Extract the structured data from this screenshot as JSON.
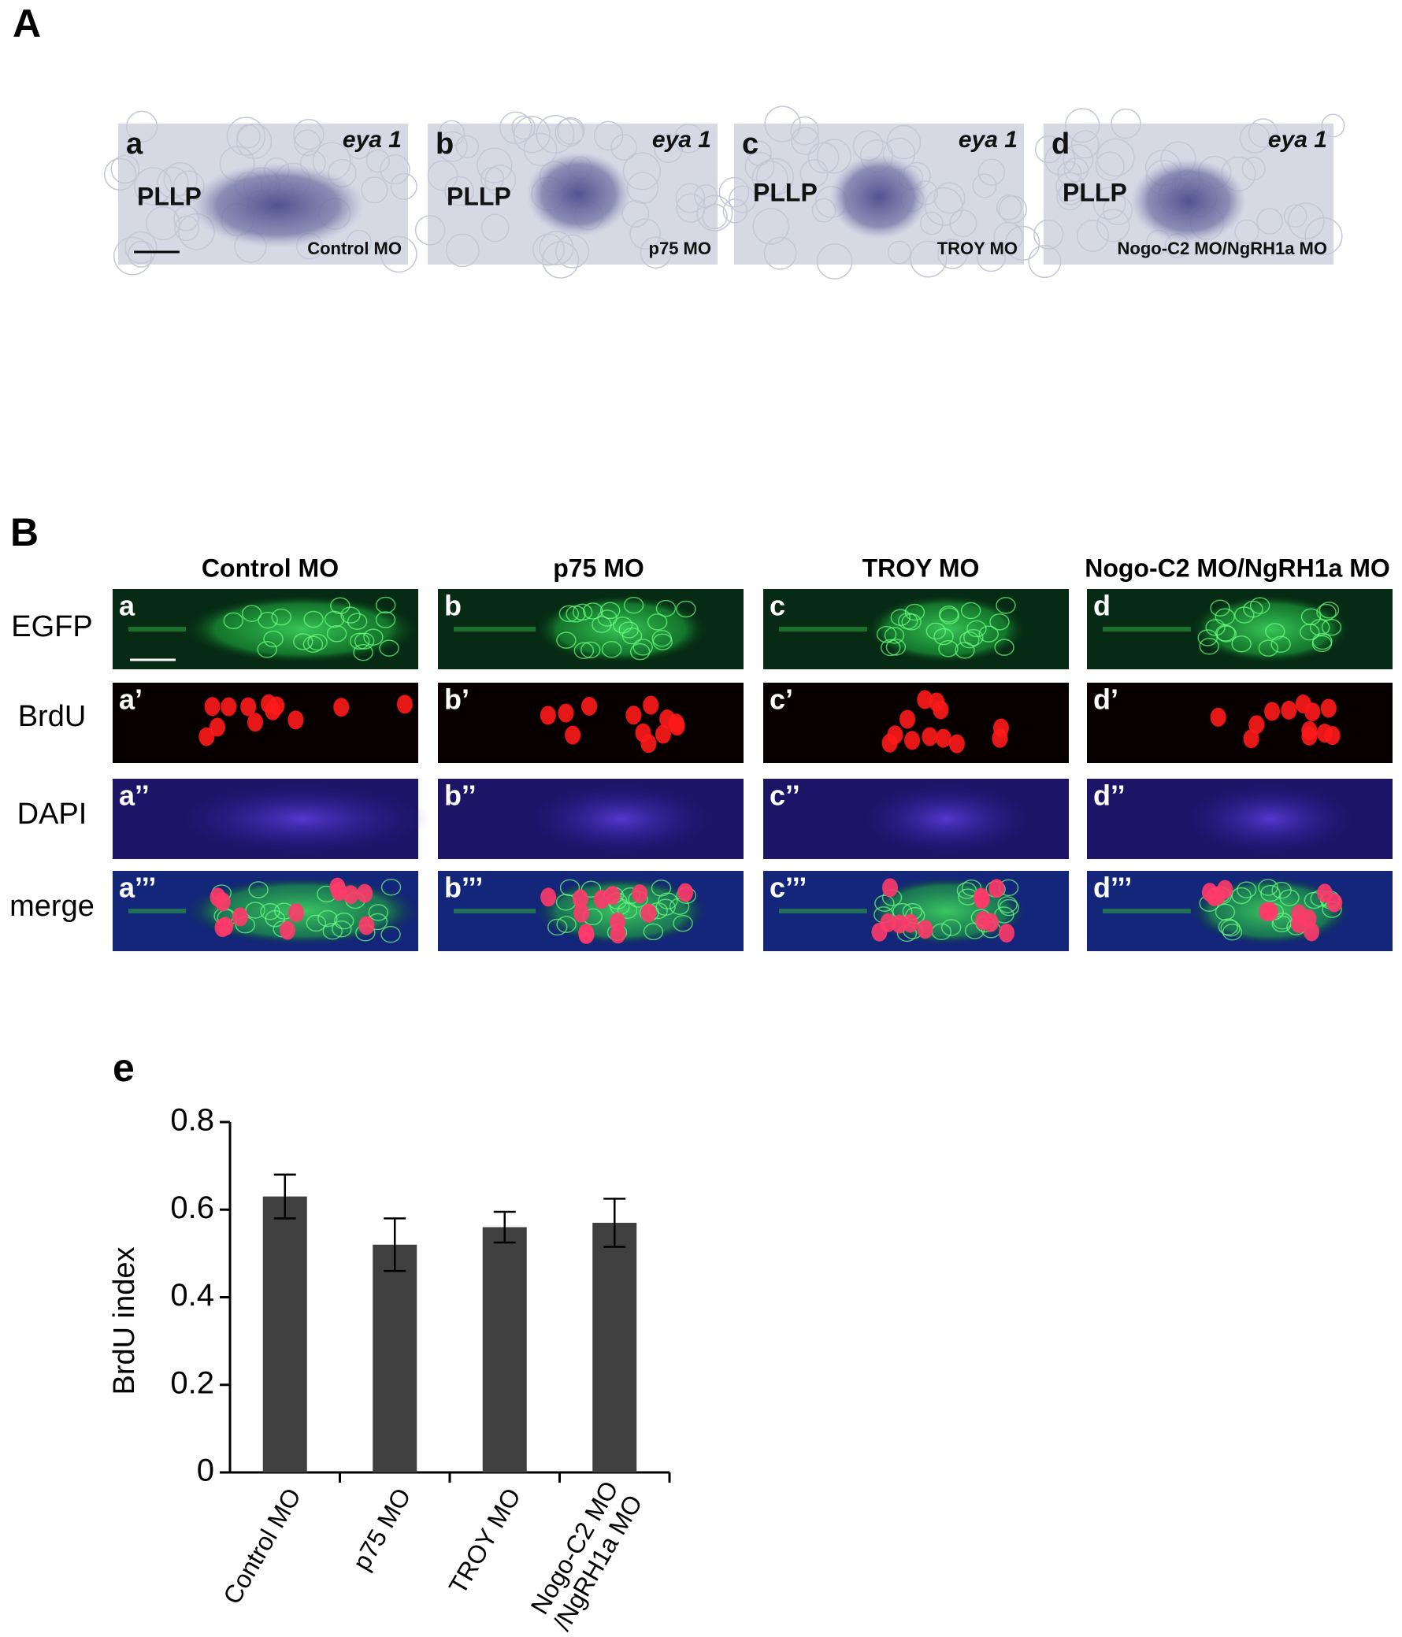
{
  "panel_A": {
    "label": "A",
    "panels": [
      {
        "letter": "a",
        "gene": "eya 1",
        "structure": "PLLP",
        "condition": "Control MO"
      },
      {
        "letter": "b",
        "gene": "eya 1",
        "structure": "PLLP",
        "condition": "p75 MO"
      },
      {
        "letter": "c",
        "gene": "eya 1",
        "structure": "PLLP",
        "condition": "TROY MO"
      },
      {
        "letter": "d",
        "gene": "eya 1",
        "structure": "PLLP",
        "condition": "Nogo-C2 MO/NgRH1a MO"
      }
    ]
  },
  "panel_B": {
    "label": "B",
    "columns": [
      "Control MO",
      "p75 MO",
      "TROY MO",
      "Nogo-C2 MO/NgRH1a MO"
    ],
    "rows": [
      "EGFP",
      "BrdU",
      "DAPI",
      "merge"
    ],
    "panel_letters": [
      [
        "a",
        "a’",
        "a’’",
        "a’’’"
      ],
      [
        "b",
        "b’",
        "b’’",
        "b’’’"
      ],
      [
        "c",
        "c’",
        "c’’",
        "c’’’"
      ],
      [
        "d",
        "d’",
        "d’’",
        "d’’’"
      ]
    ]
  },
  "chart_data": {
    "type": "bar",
    "panel_label": "e",
    "y_label": "BrdU index",
    "categories": [
      "Control MO",
      "p75 MO",
      "TROY MO",
      "Nogo-C2 MO\n/NgRH1a MO"
    ],
    "series": [
      {
        "color": "#404040",
        "values": [
          0.63,
          0.52,
          0.56,
          0.57
        ],
        "errors": [
          0.05,
          0.06,
          0.035,
          0.055
        ]
      }
    ],
    "ylim": [
      0,
      0.8
    ],
    "yticks": [
      0,
      0.2,
      0.4,
      0.6,
      0.8
    ]
  }
}
